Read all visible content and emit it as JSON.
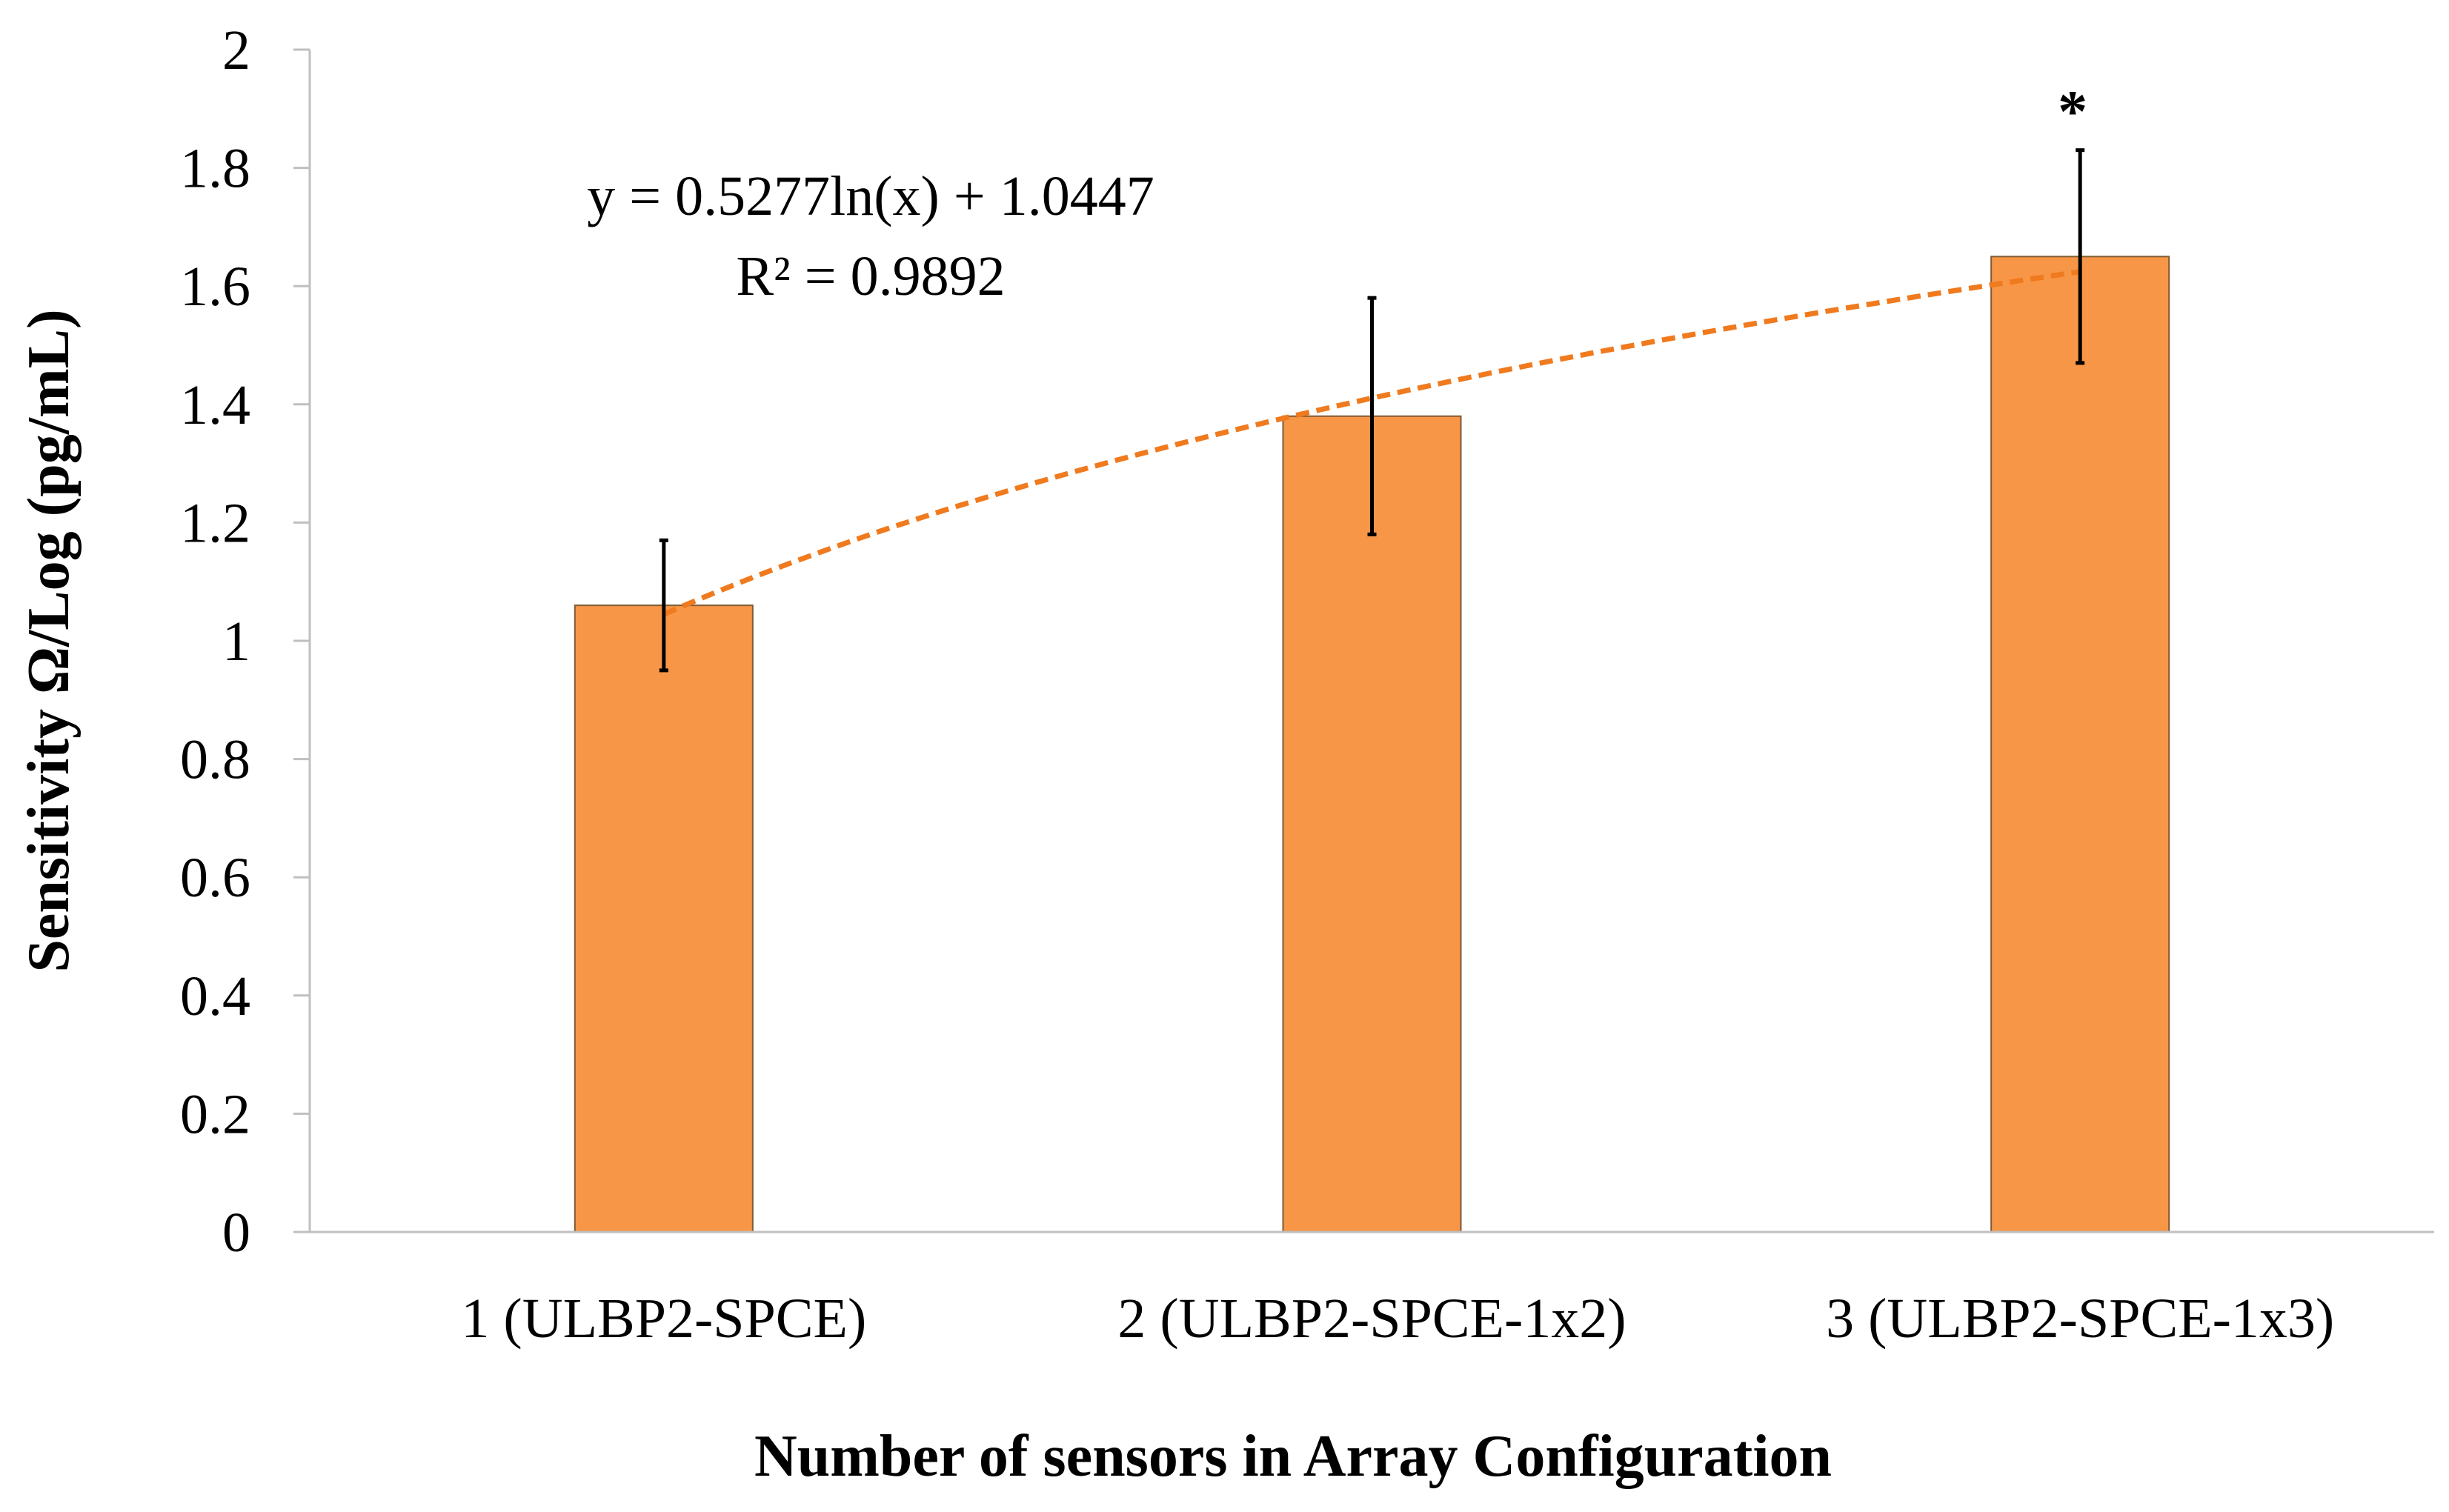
{
  "chart_data": {
    "type": "bar",
    "categories": [
      "1 (ULBP2-SPCE)",
      "2 (ULBP2-SPCE-1x2)",
      "3 (ULBP2-SPCE-1x3)"
    ],
    "values": [
      1.06,
      1.38,
      1.65
    ],
    "error_bars": [
      {
        "low": 0.95,
        "high": 1.17
      },
      {
        "low": 1.18,
        "high": 1.58
      },
      {
        "low": 1.47,
        "high": 1.83
      }
    ],
    "significance_marks": [
      "",
      "",
      "*"
    ],
    "trendline": {
      "type": "logarithmic",
      "a": 0.5277,
      "b": 1.0447,
      "equation": "y = 0.5277ln(x) + 1.0447",
      "r_squared": "R² = 0.9892",
      "color": "#F07A1E",
      "style": "dashed"
    },
    "xlabel": "Number of sensors in Array Configuration",
    "ylabel": "Sensitivity Ω/Log (pg/mL)",
    "ylim": [
      0,
      2
    ],
    "yticks": [
      "0",
      "0.2",
      "0.4",
      "0.6",
      "0.8",
      "1",
      "1.2",
      "1.4",
      "1.6",
      "1.8",
      "2"
    ],
    "grid": false,
    "bar_color": "#F79646",
    "bar_edge_color": "#7F5A34",
    "legend": "none"
  }
}
